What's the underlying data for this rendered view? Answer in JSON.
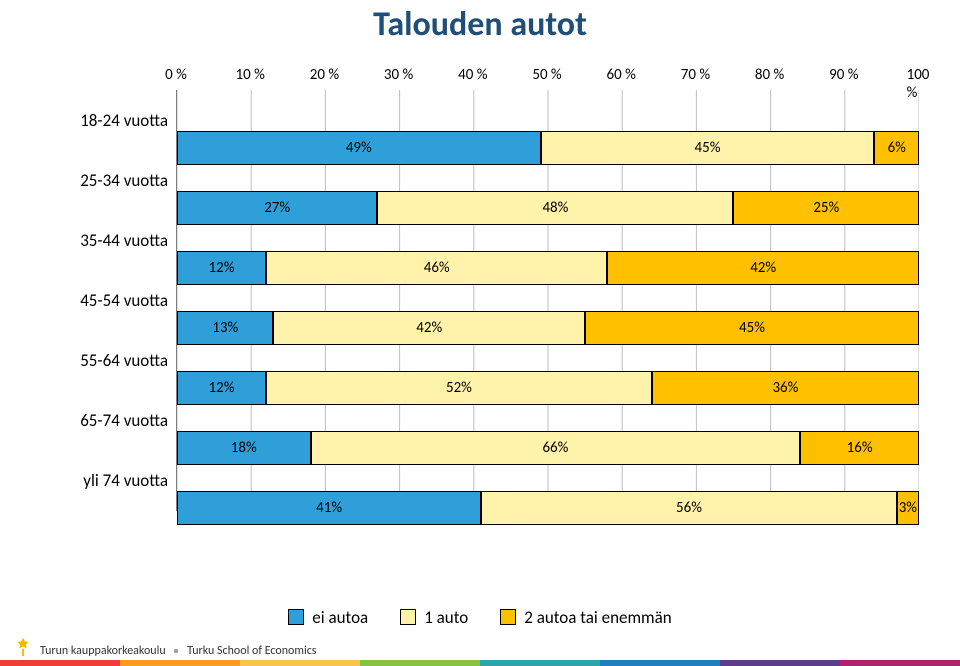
{
  "title": "Talouden autot",
  "chart": {
    "type": "bar-stacked-horizontal",
    "categories": [
      "18-24 vuotta",
      "25-34 vuotta",
      "35-44 vuotta",
      "45-54 vuotta",
      "55-64 vuotta",
      "65-74 vuotta",
      "yli 74 vuotta"
    ],
    "series": [
      {
        "name": "ei autoa",
        "color": "#2e9fd9"
      },
      {
        "name": "1 auto",
        "color": "#fff2ab"
      },
      {
        "name": "2 autoa tai enemmän",
        "color": "#ffc000"
      }
    ],
    "data": [
      [
        49,
        45,
        6
      ],
      [
        27,
        48,
        25
      ],
      [
        12,
        46,
        42
      ],
      [
        13,
        42,
        45
      ],
      [
        12,
        52,
        36
      ],
      [
        18,
        66,
        16
      ],
      [
        41,
        56,
        3
      ]
    ],
    "xticks": [
      0,
      10,
      20,
      30,
      40,
      50,
      60,
      70,
      80,
      90,
      100
    ],
    "xtick_labels": [
      "0 %",
      "10 %",
      "20 %",
      "30 %",
      "40 %",
      "50 %",
      "60 %",
      "70 %",
      "80 %",
      "90 %",
      "100 %"
    ],
    "bar_border_color": "#000000",
    "grid_color": "#bfbfbf",
    "axis_color": "#7f7f7f",
    "label_fontsize": 15,
    "title_color": "#1f4e79",
    "value_suffix": "%"
  },
  "footer": {
    "org_fi": "Turun kauppakorkeakoulu",
    "org_en": "Turku School of Economics"
  },
  "stripe_colors": [
    "#f43b3b",
    "#ff9a1f",
    "#f7c648",
    "#86c440",
    "#2aa7a7",
    "#1f7fbf",
    "#5b3d8a",
    "#b0226b"
  ]
}
